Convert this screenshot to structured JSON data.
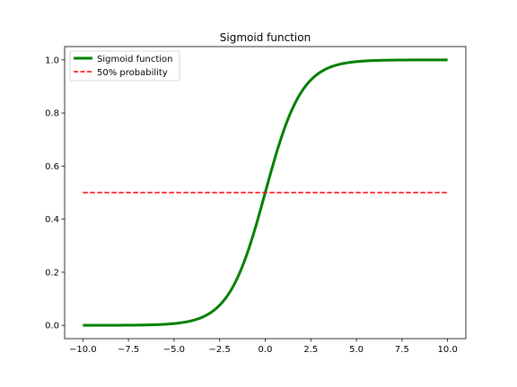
{
  "chart_data": {
    "type": "line",
    "title": "Sigmoid function",
    "xlabel": "",
    "ylabel": "",
    "xlim": [
      -11.0,
      11.0
    ],
    "ylim": [
      -0.05,
      1.05
    ],
    "x_ticks": [
      -10.0,
      -7.5,
      -5.0,
      -2.5,
      0.0,
      2.5,
      5.0,
      7.5,
      10.0
    ],
    "x_tick_labels": [
      "−10.0",
      "−7.5",
      "−5.0",
      "−2.5",
      "0.0",
      "2.5",
      "5.0",
      "7.5",
      "10.0"
    ],
    "y_ticks": [
      0.0,
      0.2,
      0.4,
      0.6,
      0.8,
      1.0
    ],
    "y_tick_labels": [
      "0.0",
      "0.2",
      "0.4",
      "0.6",
      "0.8",
      "1.0"
    ],
    "grid": false,
    "legend_position": "upper-left",
    "series": [
      {
        "name": "Sigmoid function",
        "style": "solid",
        "color": "#008000",
        "x": [
          -10,
          -9,
          -8,
          -7,
          -6,
          -5,
          -4,
          -3.5,
          -3,
          -2.5,
          -2,
          -1.5,
          -1,
          -0.5,
          0,
          0.5,
          1,
          1.5,
          2,
          2.5,
          3,
          3.5,
          4,
          5,
          6,
          7,
          8,
          9,
          10
        ],
        "y": [
          0.0,
          0.0001,
          0.0003,
          0.0009,
          0.0025,
          0.0067,
          0.018,
          0.0293,
          0.0474,
          0.0759,
          0.1192,
          0.1824,
          0.2689,
          0.3775,
          0.5,
          0.6225,
          0.7311,
          0.8176,
          0.8808,
          0.9241,
          0.9526,
          0.9707,
          0.982,
          0.9933,
          0.9975,
          0.9991,
          0.9997,
          0.9999,
          1.0
        ]
      },
      {
        "name": "50% probability",
        "style": "dashed",
        "color": "#ff0000",
        "x": [
          -10,
          10
        ],
        "y": [
          0.5,
          0.5
        ]
      }
    ]
  }
}
